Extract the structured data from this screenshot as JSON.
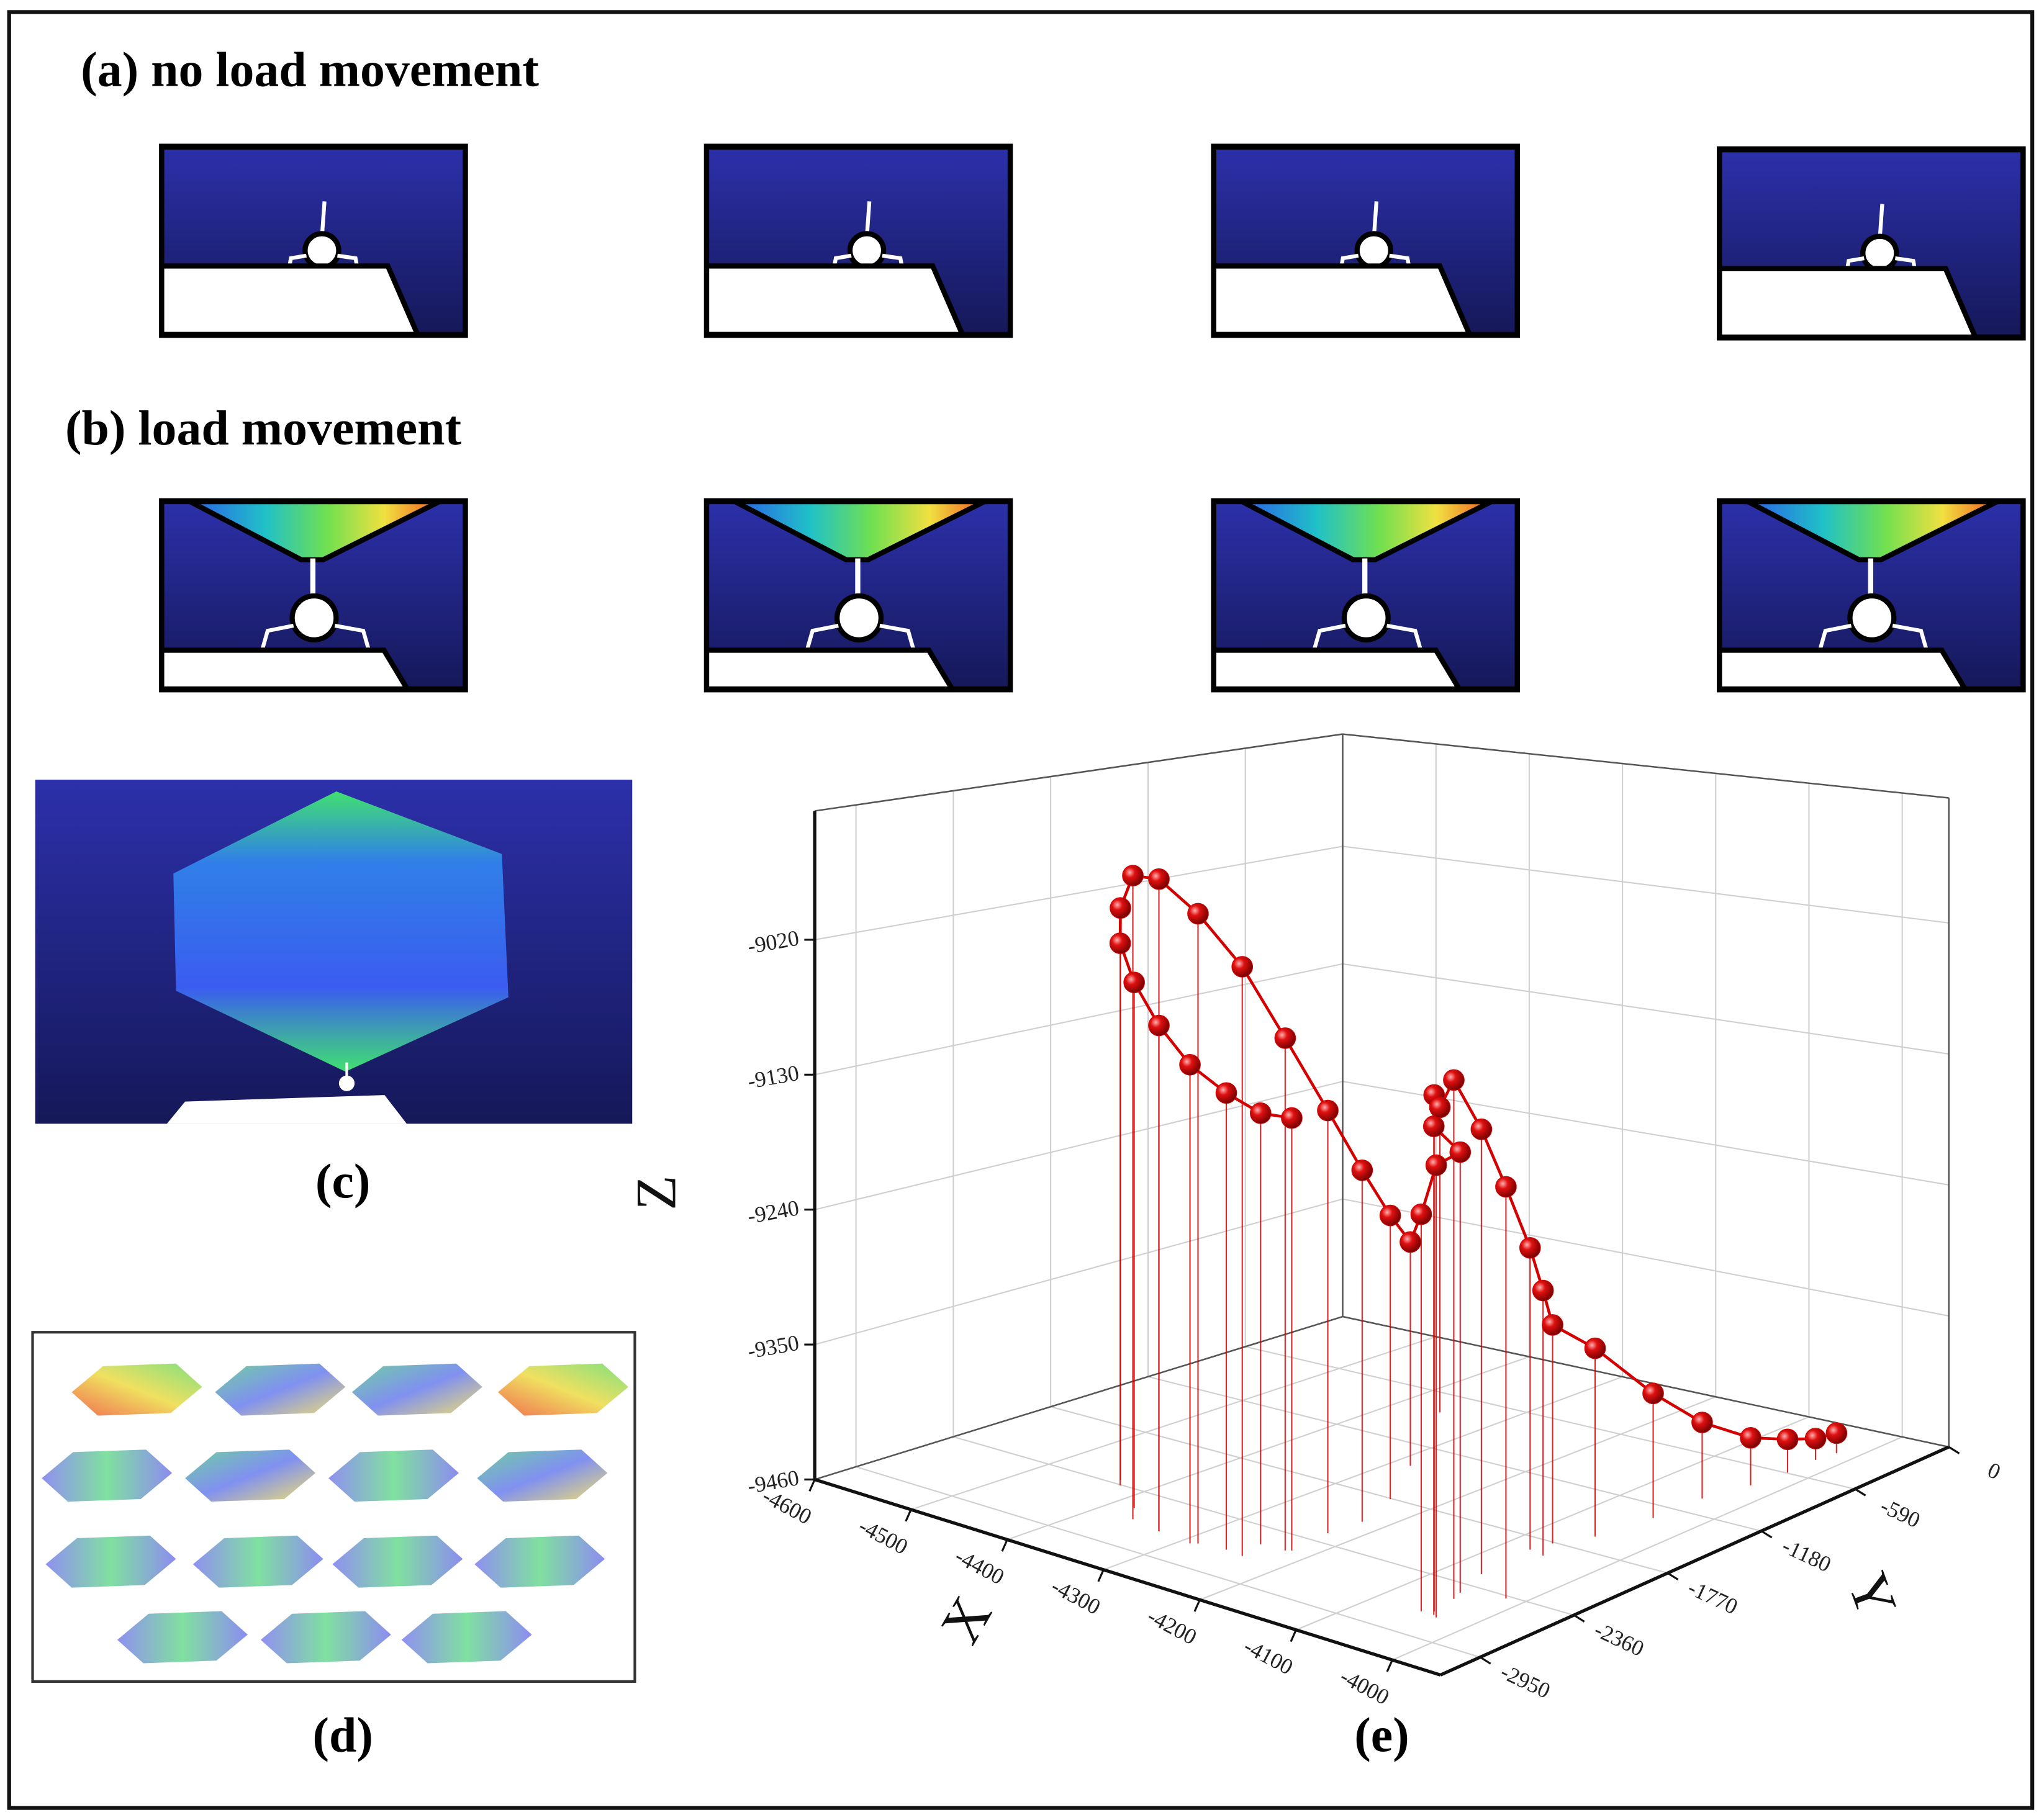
{
  "panels": {
    "a": "(a) no load movement",
    "b": "(b) load movement",
    "c": "(c)",
    "d": "(d)",
    "e": "(e)"
  },
  "chart_data": {
    "type": "scatter3d",
    "xlabel": "X",
    "ylabel": "Y",
    "zlabel": "Z",
    "xlim": [
      -4600,
      -3950
    ],
    "ylim": [
      -3200,
      0
    ],
    "zlim": [
      -9460,
      -8915
    ],
    "xticks": [
      -4600,
      -4500,
      -4400,
      -4300,
      -4200,
      -4100,
      -4000
    ],
    "yticks": [
      0,
      -590,
      -1180,
      -1770,
      -2360,
      -2950
    ],
    "zticks": [
      -9020,
      -9130,
      -9240,
      -9350,
      -9460
    ],
    "grid": true,
    "series": [
      {
        "color": "#d40000",
        "x": [
          -4220,
          -4248,
          -4260,
          -4291,
          -4328,
          -4379,
          -4424,
          -4433,
          -4362,
          -4328,
          -4286,
          -4241,
          -4224,
          -4225,
          -4222,
          -4241,
          -4283,
          -4051,
          -4033,
          -4054,
          -4038,
          -4043,
          -4356,
          -4049,
          -4068,
          -4017,
          -4074,
          -4057,
          -4069,
          -4052,
          -4043,
          -4040,
          -4028,
          -4023,
          -4024,
          -4020
        ],
        "y": [
          -2511,
          -2538,
          -2679,
          -2720,
          -2693,
          -2545,
          -2367,
          -2313,
          -2653,
          -2693,
          -2700,
          -2693,
          -2528,
          -2258,
          -2063,
          -1777,
          -1407,
          -2712,
          -2726,
          -2450,
          -2711,
          -2679,
          -801,
          -2520,
          -2234,
          -2385,
          -1894,
          -1914,
          -1783,
          -1618,
          -1308,
          -1019,
          -786,
          -584,
          -403,
          -295
        ],
        "z": [
          -9102,
          -9103,
          -9083,
          -9065,
          -9042,
          -9023,
          -9006,
          -8980,
          -8927,
          -8921,
          -8940,
          -8974,
          -9036,
          -9108,
          -9166,
          -9221,
          -9269,
          -9134,
          -9089,
          -9097,
          -9059,
          -9036,
          -9193,
          -9033,
          -9092,
          -9121,
          -9209,
          -9240,
          -9278,
          -9303,
          -9356,
          -9396,
          -9420,
          -9432,
          -9442,
          -9443
        ]
      }
    ]
  }
}
